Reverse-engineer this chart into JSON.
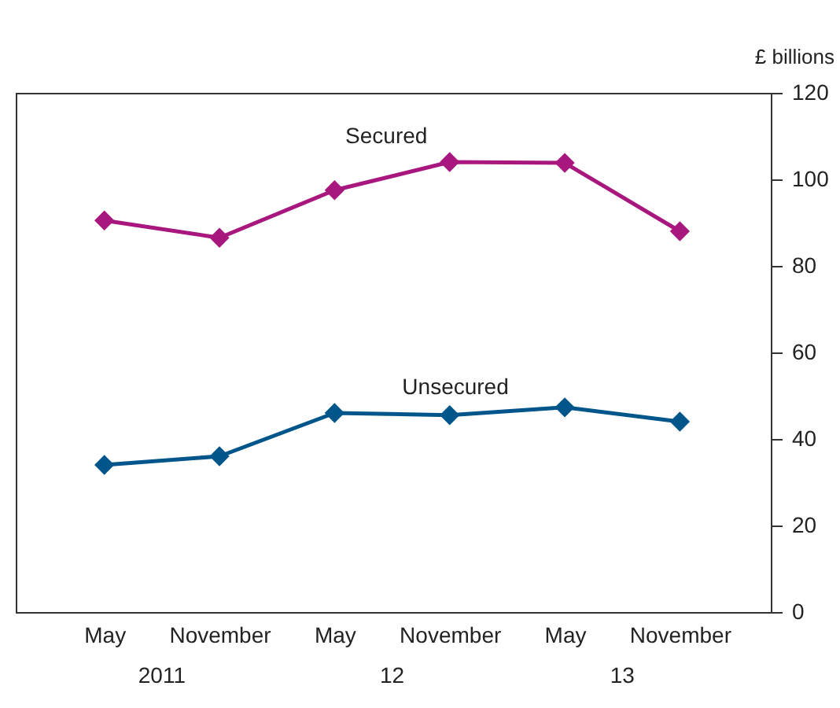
{
  "chart_data": {
    "type": "line",
    "ylabel": "£ billions",
    "categories": [
      "May",
      "November",
      "May",
      "November",
      "May",
      "November"
    ],
    "annotations": [
      "2011",
      "12",
      "13"
    ],
    "series": [
      {
        "name": "Secured",
        "color": "#a8177e",
        "values": [
          90.5,
          86.5,
          97.5,
          104,
          103.8,
          88
        ]
      },
      {
        "name": "Unsecured",
        "color": "#00558a",
        "values": [
          34,
          36,
          46,
          45.5,
          47.3,
          44
        ]
      }
    ],
    "ylim": [
      0,
      120
    ],
    "yticks": [
      0,
      20,
      40,
      60,
      80,
      100,
      120
    ],
    "marker": "diamond",
    "grid": false,
    "legend": false
  }
}
